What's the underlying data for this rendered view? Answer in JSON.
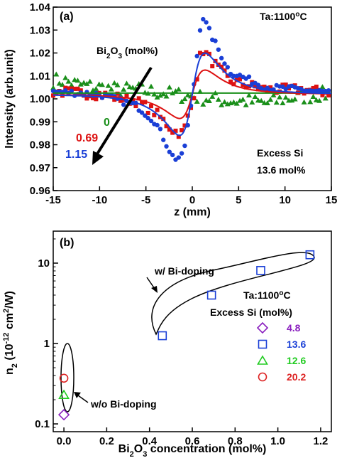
{
  "chart_data": [
    {
      "type": "scatter",
      "panel_label": "(a)",
      "xlabel": "z (mm)",
      "ylabel": "Intensity (arb.unit)",
      "xlim": [
        -15,
        15
      ],
      "ylim": [
        0.96,
        1.04
      ],
      "x_ticks": [
        "-15",
        "-10",
        "-5",
        "0",
        "5",
        "10",
        "15"
      ],
      "y_ticks": [
        "0.96",
        "0.97",
        "0.98",
        "0.99",
        "1.00",
        "1.01",
        "1.02",
        "1.03",
        "1.04"
      ],
      "annotations": {
        "top_right": "Ta:1100°C",
        "arrow_label": "Bi2O3 (mol%)",
        "excess_line1": "Excess Si",
        "excess_line2": "13.6 mol%"
      },
      "series": [
        {
          "name": "0",
          "color": "#1a8f1a",
          "peak": 0.0,
          "valley": 0.0,
          "noise": 0.0032,
          "x": [
            -14,
            -12,
            -10,
            -8,
            -6,
            -4,
            -2,
            0,
            2,
            4,
            6,
            8,
            10,
            12,
            14
          ],
          "y": [
            1.008,
            1.006,
            1.005,
            1.004,
            1.004,
            1.003,
            1.002,
            1.001,
            1.0,
            0.999,
            0.999,
            0.998,
            1.0,
            1.001,
            1.002
          ]
        },
        {
          "name": "0.69",
          "color": "#dd1111",
          "peak": 0.02,
          "valley": -0.017,
          "noise": 0.0022,
          "x": [
            -14,
            -10,
            -6,
            -4,
            -2,
            -1,
            0,
            1,
            2,
            4,
            8,
            12,
            14
          ],
          "y": [
            1.003,
            1.002,
            0.999,
            0.994,
            0.986,
            0.985,
            0.998,
            1.022,
            1.017,
            1.008,
            1.004,
            1.004,
            1.003
          ]
        },
        {
          "name": "1.15",
          "color": "#1a3fd6",
          "peak": 0.036,
          "valley": -0.03,
          "noise": 0.0014,
          "x": [
            -14,
            -10,
            -6,
            -4,
            -2,
            -1,
            0,
            1,
            2,
            4,
            8,
            12,
            14
          ],
          "y": [
            1.003,
            1.002,
            0.997,
            0.99,
            0.974,
            0.975,
            1.0,
            1.037,
            1.028,
            1.012,
            1.005,
            1.004,
            1.003
          ]
        }
      ],
      "fit_lines": [
        {
          "name": "0",
          "color": "#1a8f1a"
        },
        {
          "name": "0.69",
          "color": "#dd1111"
        },
        {
          "name": "1.15",
          "color": "#1a3fd6"
        }
      ],
      "legend_values": [
        "0",
        "0.69",
        "1.15"
      ]
    },
    {
      "type": "scatter",
      "panel_label": "(b)",
      "xlabel": "Bi2O3 concentration (mol%)",
      "ylabel": "n2 (10^-12 cm2/W)",
      "xscale": "linear",
      "yscale": "log",
      "xlim": [
        -0.05,
        1.25
      ],
      "ylim": [
        0.08,
        25
      ],
      "x_ticks": [
        "0.0",
        "0.2",
        "0.4",
        "0.6",
        "0.8",
        "1.0",
        "1.2"
      ],
      "y_ticks": [
        "0.1",
        "1",
        "10"
      ],
      "annotations": {
        "with_doping": "w/ Bi-doping",
        "without_doping": "w/o Bi-doping",
        "ta": "Ta:1100°C",
        "excess_title": "Excess Si (mol%)"
      },
      "series": [
        {
          "name": "4.8",
          "marker": "diamond",
          "color": "#8a1fbf",
          "x": [
            0.0
          ],
          "y": [
            0.13
          ]
        },
        {
          "name": "13.6",
          "marker": "square",
          "color": "#1a3fd6",
          "x": [
            0.46,
            0.69,
            0.92,
            1.15
          ],
          "y": [
            1.25,
            4.0,
            8.1,
            12.7
          ]
        },
        {
          "name": "12.6",
          "marker": "triangle",
          "color": "#22cc22",
          "x": [
            0.0
          ],
          "y": [
            0.23
          ]
        },
        {
          "name": "20.2",
          "marker": "circle",
          "color": "#dd2222",
          "x": [
            0.0
          ],
          "y": [
            0.37
          ]
        }
      ]
    }
  ]
}
